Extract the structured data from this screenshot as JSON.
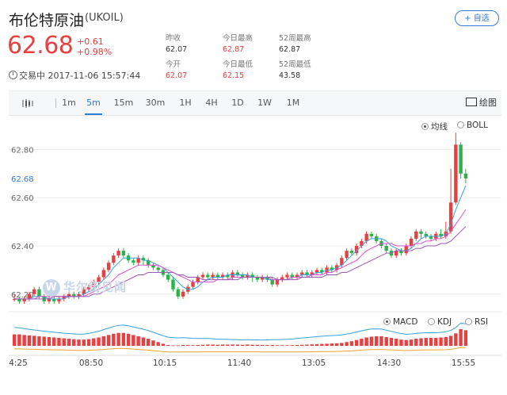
{
  "header": {
    "name": "布伦特原油",
    "code": "(UKOIL)",
    "follow_label": "+ 自选",
    "price": "62.68",
    "change": "+0.61",
    "change_pct": "+0.98%",
    "status": "交易中",
    "timestamp": "2017-11-06 15:57:44",
    "stats": [
      {
        "label": "昨收",
        "value": "62.07",
        "color": "#333333"
      },
      {
        "label": "今日最高",
        "value": "62.87",
        "color": "#e84040"
      },
      {
        "label": "52周最高",
        "value": "62.87",
        "color": "#333333"
      },
      {
        "label": "今开",
        "value": "62.07",
        "color": "#e84040"
      },
      {
        "label": "今日最低",
        "value": "62.15",
        "color": "#e84040"
      },
      {
        "label": "52周最低",
        "value": "43.58",
        "color": "#333333"
      }
    ]
  },
  "toolbar": {
    "chart_type_icon": "candlestick-icon",
    "tabs": [
      "1m",
      "5m",
      "15m",
      "30m",
      "1H",
      "4H",
      "1D",
      "1W",
      "1M"
    ],
    "active_tab": "5m",
    "draw_label": "绘图"
  },
  "main_overlays": {
    "ma_label": "均线",
    "boll_label": "BOLL",
    "selected": "均线"
  },
  "sub_indicators": {
    "macd": "MACD",
    "kdj": "KDJ",
    "rsi": "RSI",
    "selected": "MACD"
  },
  "watermark": "华尔街见闻",
  "colors": {
    "up": "#e84040",
    "down": "#2bb34a",
    "accent": "#2a7ed3",
    "price_label": "#2a7ed3"
  },
  "chart_data": {
    "type": "candlestick",
    "y_ticks": [
      "62.80",
      "62.60",
      "62.40",
      "62.20"
    ],
    "current_price_label": "62.68",
    "x_ticks": [
      "4:25",
      "08:50",
      "10:15",
      "11:40",
      "13:05",
      "14:30",
      "15:55"
    ],
    "ylim": [
      62.15,
      62.92
    ],
    "candles": [
      [
        62.18,
        62.18,
        62.2,
        62.17
      ],
      [
        62.18,
        62.17,
        62.19,
        62.16
      ],
      [
        62.17,
        62.18,
        62.19,
        62.16
      ],
      [
        62.18,
        62.2,
        62.21,
        62.17
      ],
      [
        62.2,
        62.22,
        62.23,
        62.19
      ],
      [
        62.22,
        62.19,
        62.23,
        62.18
      ],
      [
        62.19,
        62.17,
        62.2,
        62.16
      ],
      [
        62.17,
        62.18,
        62.19,
        62.16
      ],
      [
        62.18,
        62.17,
        62.19,
        62.16
      ],
      [
        62.17,
        62.18,
        62.19,
        62.16
      ],
      [
        62.18,
        62.19,
        62.2,
        62.17
      ],
      [
        62.19,
        62.2,
        62.21,
        62.18
      ],
      [
        62.2,
        62.19,
        62.21,
        62.18
      ],
      [
        62.19,
        62.2,
        62.21,
        62.18
      ],
      [
        62.2,
        62.22,
        62.23,
        62.19
      ],
      [
        62.22,
        62.23,
        62.24,
        62.21
      ],
      [
        62.23,
        62.25,
        62.26,
        62.22
      ],
      [
        62.25,
        62.27,
        62.28,
        62.24
      ],
      [
        62.27,
        62.3,
        62.31,
        62.26
      ],
      [
        62.3,
        62.33,
        62.34,
        62.29
      ],
      [
        62.33,
        62.36,
        62.37,
        62.32
      ],
      [
        62.36,
        62.38,
        62.39,
        62.35
      ],
      [
        62.38,
        62.36,
        62.39,
        62.35
      ],
      [
        62.36,
        62.34,
        62.37,
        62.33
      ],
      [
        62.34,
        62.33,
        62.35,
        62.32
      ],
      [
        62.33,
        62.35,
        62.36,
        62.32
      ],
      [
        62.35,
        62.34,
        62.36,
        62.32
      ],
      [
        62.34,
        62.32,
        62.35,
        62.31
      ],
      [
        62.32,
        62.31,
        62.33,
        62.3
      ],
      [
        62.31,
        62.3,
        62.32,
        62.29
      ],
      [
        62.3,
        62.28,
        62.31,
        62.27
      ],
      [
        62.28,
        62.26,
        62.29,
        62.25
      ],
      [
        62.26,
        62.22,
        62.27,
        62.21
      ],
      [
        62.22,
        62.19,
        62.23,
        62.18
      ],
      [
        62.19,
        62.21,
        62.22,
        62.18
      ],
      [
        62.21,
        62.23,
        62.24,
        62.2
      ],
      [
        62.23,
        62.25,
        62.26,
        62.22
      ],
      [
        62.25,
        62.27,
        62.28,
        62.24
      ],
      [
        62.27,
        62.28,
        62.29,
        62.26
      ],
      [
        62.28,
        62.27,
        62.29,
        62.26
      ],
      [
        62.27,
        62.28,
        62.29,
        62.26
      ],
      [
        62.28,
        62.27,
        62.29,
        62.26
      ],
      [
        62.27,
        62.28,
        62.29,
        62.26
      ],
      [
        62.28,
        62.27,
        62.29,
        62.26
      ],
      [
        62.27,
        62.29,
        62.3,
        62.26
      ],
      [
        62.29,
        62.28,
        62.3,
        62.27
      ],
      [
        62.28,
        62.27,
        62.29,
        62.26
      ],
      [
        62.27,
        62.28,
        62.29,
        62.26
      ],
      [
        62.28,
        62.27,
        62.29,
        62.25
      ],
      [
        62.27,
        62.26,
        62.28,
        62.25
      ],
      [
        62.26,
        62.27,
        62.28,
        62.25
      ],
      [
        62.27,
        62.26,
        62.28,
        62.25
      ],
      [
        62.26,
        62.24,
        62.27,
        62.23
      ],
      [
        62.24,
        62.26,
        62.27,
        62.23
      ],
      [
        62.26,
        62.27,
        62.28,
        62.25
      ],
      [
        62.27,
        62.28,
        62.29,
        62.26
      ],
      [
        62.28,
        62.27,
        62.29,
        62.26
      ],
      [
        62.27,
        62.28,
        62.29,
        62.26
      ],
      [
        62.28,
        62.29,
        62.3,
        62.27
      ],
      [
        62.29,
        62.28,
        62.3,
        62.27
      ],
      [
        62.28,
        62.29,
        62.3,
        62.27
      ],
      [
        62.29,
        62.3,
        62.31,
        62.28
      ],
      [
        62.3,
        62.29,
        62.31,
        62.28
      ],
      [
        62.29,
        62.31,
        62.32,
        62.28
      ],
      [
        62.31,
        62.3,
        62.32,
        62.29
      ],
      [
        62.3,
        62.32,
        62.33,
        62.29
      ],
      [
        62.32,
        62.35,
        62.36,
        62.31
      ],
      [
        62.35,
        62.38,
        62.39,
        62.34
      ],
      [
        62.38,
        62.37,
        62.39,
        62.36
      ],
      [
        62.37,
        62.4,
        62.41,
        62.36
      ],
      [
        62.4,
        62.42,
        62.43,
        62.39
      ],
      [
        62.42,
        62.45,
        62.46,
        62.41
      ],
      [
        62.45,
        62.44,
        62.46,
        62.43
      ],
      [
        62.44,
        62.42,
        62.45,
        62.41
      ],
      [
        62.42,
        62.4,
        62.43,
        62.39
      ],
      [
        62.4,
        62.38,
        62.41,
        62.37
      ],
      [
        62.38,
        62.36,
        62.39,
        62.35
      ],
      [
        62.36,
        62.38,
        62.39,
        62.35
      ],
      [
        62.38,
        62.37,
        62.39,
        62.36
      ],
      [
        62.37,
        62.4,
        62.41,
        62.36
      ],
      [
        62.4,
        62.43,
        62.44,
        62.39
      ],
      [
        62.43,
        62.46,
        62.47,
        62.42
      ],
      [
        62.46,
        62.45,
        62.47,
        62.43
      ],
      [
        62.45,
        62.44,
        62.46,
        62.43
      ],
      [
        62.44,
        62.43,
        62.45,
        62.42
      ],
      [
        62.43,
        62.45,
        62.46,
        62.42
      ],
      [
        62.45,
        62.44,
        62.47,
        62.43
      ],
      [
        62.44,
        62.46,
        62.5,
        62.43
      ],
      [
        62.46,
        62.58,
        62.72,
        62.45
      ],
      [
        62.58,
        62.82,
        62.87,
        62.57
      ],
      [
        62.82,
        62.7,
        62.83,
        62.68
      ],
      [
        62.7,
        62.68,
        62.72,
        62.66
      ]
    ],
    "ma_lines": [
      {
        "color": "#37a2e0",
        "values": [
          62.18,
          62.18,
          62.18,
          62.18,
          62.19,
          62.19,
          62.19,
          62.18,
          62.18,
          62.18,
          62.18,
          62.19,
          62.19,
          62.19,
          62.2,
          62.21,
          62.22,
          62.24,
          62.26,
          62.28,
          62.31,
          62.33,
          62.35,
          62.35,
          62.35,
          62.35,
          62.34,
          62.34,
          62.33,
          62.32,
          62.31,
          62.29,
          62.27,
          62.25,
          62.23,
          62.22,
          62.22,
          62.23,
          62.25,
          62.26,
          62.27,
          62.27,
          62.27,
          62.28,
          62.28,
          62.28,
          62.28,
          62.28,
          62.27,
          62.27,
          62.27,
          62.26,
          62.26,
          62.26,
          62.26,
          62.26,
          62.27,
          62.27,
          62.28,
          62.28,
          62.28,
          62.29,
          62.29,
          62.3,
          62.3,
          62.31,
          62.32,
          62.34,
          62.36,
          62.38,
          62.4,
          62.42,
          62.43,
          62.43,
          62.43,
          62.42,
          62.4,
          62.39,
          62.38,
          62.38,
          62.39,
          62.41,
          62.43,
          62.44,
          62.44,
          62.44,
          62.44,
          62.45,
          62.49,
          62.55,
          62.6,
          62.65
        ]
      },
      {
        "color": "#e04fcf",
        "values": [
          62.18,
          62.18,
          62.18,
          62.18,
          62.18,
          62.19,
          62.19,
          62.19,
          62.19,
          62.19,
          62.19,
          62.19,
          62.19,
          62.19,
          62.19,
          62.2,
          62.21,
          62.22,
          62.23,
          62.24,
          62.26,
          62.28,
          62.29,
          62.3,
          62.31,
          62.32,
          62.32,
          62.32,
          62.32,
          62.32,
          62.31,
          62.3,
          62.29,
          62.28,
          62.27,
          62.26,
          62.25,
          62.25,
          62.25,
          62.25,
          62.25,
          62.26,
          62.26,
          62.26,
          62.27,
          62.27,
          62.27,
          62.27,
          62.27,
          62.27,
          62.27,
          62.27,
          62.26,
          62.26,
          62.26,
          62.26,
          62.27,
          62.27,
          62.27,
          62.27,
          62.28,
          62.28,
          62.28,
          62.29,
          62.29,
          62.3,
          62.31,
          62.32,
          62.33,
          62.34,
          62.36,
          62.38,
          62.39,
          62.4,
          62.41,
          62.41,
          62.41,
          62.4,
          62.4,
          62.4,
          62.4,
          62.41,
          62.41,
          62.42,
          62.42,
          62.43,
          62.43,
          62.44,
          62.46,
          62.49,
          62.52,
          62.55
        ]
      },
      {
        "color": "#9b59b6",
        "values": [
          62.18,
          62.18,
          62.18,
          62.18,
          62.18,
          62.18,
          62.18,
          62.18,
          62.19,
          62.19,
          62.19,
          62.19,
          62.19,
          62.19,
          62.19,
          62.19,
          62.2,
          62.2,
          62.21,
          62.22,
          62.23,
          62.24,
          62.25,
          62.26,
          62.27,
          62.28,
          62.28,
          62.29,
          62.29,
          62.29,
          62.29,
          62.29,
          62.29,
          62.28,
          62.28,
          62.27,
          62.27,
          62.27,
          62.26,
          62.26,
          62.26,
          62.26,
          62.26,
          62.26,
          62.26,
          62.26,
          62.27,
          62.27,
          62.27,
          62.27,
          62.27,
          62.27,
          62.27,
          62.26,
          62.26,
          62.26,
          62.26,
          62.26,
          62.27,
          62.27,
          62.27,
          62.27,
          62.27,
          62.28,
          62.28,
          62.28,
          62.29,
          62.29,
          62.3,
          62.31,
          62.32,
          62.33,
          62.34,
          62.35,
          62.36,
          62.37,
          62.37,
          62.38,
          62.38,
          62.38,
          62.38,
          62.39,
          62.39,
          62.4,
          62.4,
          62.4,
          62.41,
          62.41,
          62.42,
          62.44,
          62.46,
          62.48
        ]
      }
    ],
    "macd_hist": [
      0.55,
      0.55,
      0.52,
      0.5,
      0.48,
      0.46,
      0.44,
      0.42,
      0.4,
      0.38,
      0.36,
      0.34,
      0.32,
      0.3,
      0.3,
      0.32,
      0.36,
      0.4,
      0.46,
      0.52,
      0.58,
      0.62,
      0.62,
      0.58,
      0.52,
      0.46,
      0.4,
      0.34,
      0.26,
      0.18,
      0.1,
      0.04,
      0.02,
      0.02,
      0.04,
      0.04,
      0.03,
      0.04,
      0.05,
      0.06,
      0.06,
      0.05,
      0.06,
      0.06,
      0.06,
      0.06,
      0.05,
      0.06,
      0.05,
      0.05,
      0.04,
      0.04,
      0.04,
      0.03,
      0.03,
      0.03,
      0.03,
      0.04,
      0.05,
      0.06,
      0.07,
      0.08,
      0.09,
      0.1,
      0.11,
      0.12,
      0.14,
      0.18,
      0.22,
      0.28,
      0.34,
      0.4,
      0.44,
      0.46,
      0.46,
      0.42,
      0.38,
      0.34,
      0.3,
      0.28,
      0.3,
      0.34,
      0.36,
      0.38,
      0.38,
      0.38,
      0.4,
      0.42,
      0.48,
      0.6,
      0.8,
      0.75
    ]
  }
}
